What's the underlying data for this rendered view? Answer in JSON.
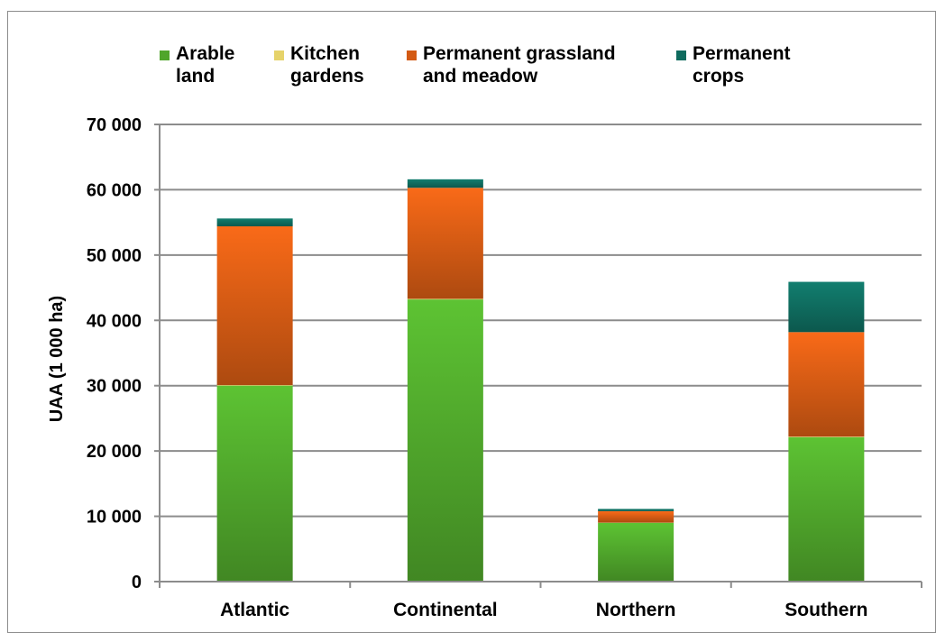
{
  "chart_data": {
    "type": "bar",
    "stacked": true,
    "categories": [
      "Atlantic",
      "Continental",
      "Northern",
      "Southern"
    ],
    "series": [
      {
        "name": "Arable land",
        "values": [
          30000,
          43200,
          9000,
          22100
        ],
        "color": "#4fa52b"
      },
      {
        "name": "Kitchen gardens",
        "values": [
          100,
          100,
          30,
          100
        ],
        "color": "#e6d36a"
      },
      {
        "name": "Permanent grassland and meadow",
        "values": [
          24300,
          17000,
          1750,
          16000
        ],
        "color": "#d35a14"
      },
      {
        "name": "Permanent crops",
        "values": [
          1200,
          1300,
          350,
          7700
        ],
        "color": "#0f6b5e"
      }
    ],
    "legend_lines": [
      [
        "Arable",
        "land"
      ],
      [
        "Kitchen",
        "gardens"
      ],
      [
        "Permanent grassland",
        "and meadow"
      ],
      [
        "Permanent",
        "crops"
      ]
    ],
    "ylabel": "UAA (1 000 ha)",
    "xlabel": "",
    "ylim": [
      0,
      70000
    ],
    "yticks": [
      0,
      10000,
      20000,
      30000,
      40000,
      50000,
      60000,
      70000
    ],
    "ytick_labels": [
      "0",
      "10 000",
      "20 000",
      "30 000",
      "40 000",
      "50 000",
      "60 000",
      "70 000"
    ],
    "grid": true,
    "legend_position": "top"
  }
}
